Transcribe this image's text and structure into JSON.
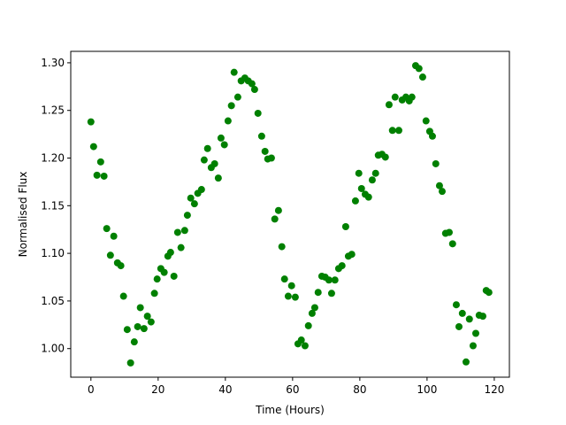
{
  "chart_data": {
    "type": "scatter",
    "xlabel": "Time (Hours)",
    "ylabel": "Normalised Flux",
    "color": "#008000",
    "x": [
      0,
      0.8,
      1.8,
      2.9,
      3.9,
      4.7,
      5.8,
      6.8,
      7.9,
      8.9,
      9.7,
      10.8,
      11.8,
      12.9,
      13.9,
      14.7,
      15.8,
      16.8,
      17.9,
      18.9,
      19.7,
      20.8,
      21.8,
      22.9,
      23.7,
      24.7,
      25.8,
      26.8,
      27.9,
      28.7,
      29.7,
      30.8,
      31.8,
      32.9,
      33.7,
      34.7,
      35.8,
      36.8,
      37.9,
      38.7,
      39.7,
      40.8,
      41.8,
      42.6,
      43.7,
      44.7,
      45.8,
      46.8,
      47.9,
      48.7,
      49.7,
      50.8,
      51.8,
      52.6,
      53.7,
      54.7,
      55.8,
      56.8,
      57.6,
      58.7,
      59.7,
      60.8,
      61.6,
      62.6,
      63.7,
      64.7,
      65.8,
      66.6,
      67.6,
      68.7,
      69.7,
      70.8,
      71.6,
      72.6,
      73.7,
      74.7,
      75.8,
      76.6,
      77.6,
      78.7,
      79.7,
      80.5,
      81.6,
      82.6,
      83.7,
      84.7,
      85.5,
      86.6,
      87.6,
      88.7,
      89.7,
      90.5,
      91.6,
      92.6,
      93.7,
      94.7,
      95.5,
      96.6,
      97.6,
      98.7,
      99.7,
      100.8,
      101.6,
      102.6,
      103.7,
      104.5,
      105.5,
      106.6,
      107.6,
      108.7,
      109.5,
      110.5,
      111.6,
      112.6,
      113.7,
      114.5,
      115.5,
      116.6,
      117.6,
      118.4
    ],
    "values": [
      1.238,
      1.212,
      1.182,
      1.196,
      1.181,
      1.126,
      1.098,
      1.118,
      1.09,
      1.087,
      1.055,
      1.02,
      0.985,
      1.007,
      1.023,
      1.043,
      1.021,
      1.034,
      1.028,
      1.058,
      1.073,
      1.084,
      1.08,
      1.097,
      1.101,
      1.076,
      1.122,
      1.106,
      1.124,
      1.14,
      1.158,
      1.152,
      1.163,
      1.167,
      1.198,
      1.21,
      1.19,
      1.194,
      1.179,
      1.221,
      1.214,
      1.239,
      1.255,
      1.29,
      1.264,
      1.281,
      1.284,
      1.281,
      1.278,
      1.272,
      1.247,
      1.223,
      1.207,
      1.199,
      1.2,
      1.136,
      1.145,
      1.107,
      1.073,
      1.055,
      1.066,
      1.054,
      1.005,
      1.009,
      1.003,
      1.024,
      1.037,
      1.043,
      1.059,
      1.076,
      1.075,
      1.072,
      1.058,
      1.072,
      1.084,
      1.087,
      1.128,
      1.097,
      1.099,
      1.155,
      1.184,
      1.168,
      1.162,
      1.159,
      1.177,
      1.184,
      1.203,
      1.204,
      1.201,
      1.256,
      1.229,
      1.264,
      1.229,
      1.261,
      1.264,
      1.26,
      1.264,
      1.297,
      1.294,
      1.285,
      1.239,
      1.228,
      1.223,
      1.194,
      1.171,
      1.165,
      1.121,
      1.122,
      1.11,
      1.046,
      1.023,
      1.037,
      0.986,
      1.031,
      1.003,
      1.016,
      1.035,
      1.034,
      1.061,
      1.059
    ],
    "xlim": [
      -6,
      124.5
    ],
    "ylim": [
      0.97,
      1.312
    ],
    "xticks": [
      0,
      20,
      40,
      60,
      80,
      100,
      120
    ],
    "yticks": [
      {
        "value": 1.0,
        "label": "1.00"
      },
      {
        "value": 1.05,
        "label": "1.05"
      },
      {
        "value": 1.1,
        "label": "1.10"
      },
      {
        "value": 1.15,
        "label": "1.15"
      },
      {
        "value": 1.2,
        "label": "1.20"
      },
      {
        "value": 1.25,
        "label": "1.25"
      },
      {
        "value": 1.3,
        "label": "1.30"
      }
    ]
  }
}
